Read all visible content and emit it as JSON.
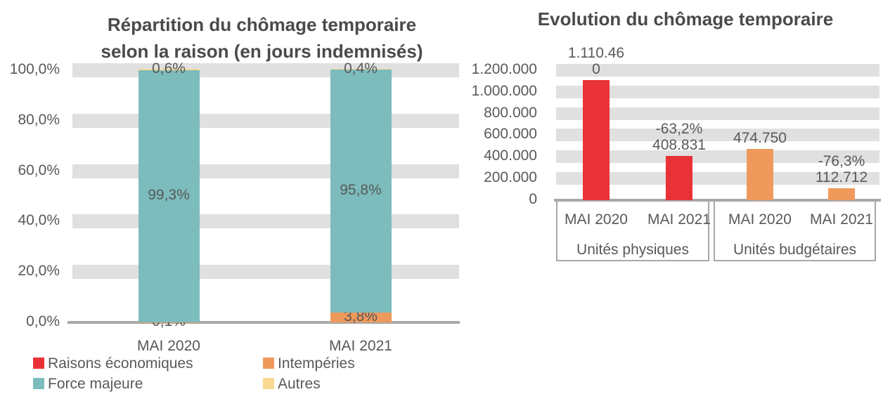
{
  "palette": {
    "background": "#ffffff",
    "grid_band": "#e0e0e0",
    "axis_line": "#a8a8a8",
    "label_text": "#595959",
    "title_text": "#4a4a4a",
    "red": "#e93238",
    "orange": "#f0995c",
    "teal": "#7cbcbc",
    "yellow": "#fbd992"
  },
  "chart_data": [
    {
      "id": "repartition",
      "type": "bar",
      "subtype": "stacked-bar-100pct",
      "title_lines": [
        "Répartition du chômage temporaire",
        "selon la raison (en jours indemnisés)"
      ],
      "categories": [
        "MAI 2020",
        "MAI 2021"
      ],
      "series": [
        {
          "name": "Raisons économiques",
          "color": "#e93238",
          "values": [
            0.0,
            0.0
          ],
          "labels": [
            "",
            ""
          ]
        },
        {
          "name": "Intempéries",
          "color": "#f0995c",
          "values": [
            0.1,
            3.8
          ],
          "labels": [
            "0,1%",
            "3,8%"
          ]
        },
        {
          "name": "Force majeure",
          "color": "#7cbcbc",
          "values": [
            99.3,
            95.8
          ],
          "labels": [
            "99,3%",
            "95,8%"
          ]
        },
        {
          "name": "Autres",
          "color": "#fbd992",
          "values": [
            0.6,
            0.4
          ],
          "labels": [
            "0,6%",
            "0,4%"
          ]
        }
      ],
      "ylabel": "",
      "xlabel": "",
      "ylim": [
        0,
        100
      ],
      "unit": "percent (jours indemnisés)",
      "y_ticks": [
        "100,0%",
        "80,0%",
        "60,0%",
        "40,0%",
        "20,0%",
        "0,0%"
      ],
      "grid": "horizontal-gray-bands",
      "legend_position": "bottom-two-columns",
      "legend_order": [
        "Raisons économiques",
        "Intempéries",
        "Force majeure",
        "Autres"
      ]
    },
    {
      "id": "evolution",
      "type": "bar",
      "subtype": "grouped-bar",
      "title_lines": [
        "Evolution du chômage temporaire"
      ],
      "ylabel": "",
      "xlabel": "",
      "ylim": [
        0,
        1200000
      ],
      "y_ticks": [
        "1.200.000",
        "1.000.000",
        "800.000",
        "600.000",
        "400.000",
        "200.000",
        "0"
      ],
      "grid": "horizontal-gray-bands",
      "legend_position": "none",
      "groups": [
        {
          "label": "Unités physiques",
          "bars": [
            {
              "category": "MAI 2020",
              "value": 1110460,
              "color": "#e93238",
              "label_lines": [
                "1.110.46",
                "0"
              ]
            },
            {
              "category": "MAI 2021",
              "value": 408831,
              "color": "#e93238",
              "label_lines": [
                "-63,2%",
                "408.831"
              ]
            }
          ]
        },
        {
          "label": "Unités budgétaires",
          "bars": [
            {
              "category": "MAI 2020",
              "value": 474750,
              "color": "#f0995c",
              "label_lines": [
                "474.750"
              ]
            },
            {
              "category": "MAI 2021",
              "value": 112712,
              "color": "#f0995c",
              "label_lines": [
                "-76,3%",
                "112.712"
              ]
            }
          ]
        }
      ]
    }
  ]
}
